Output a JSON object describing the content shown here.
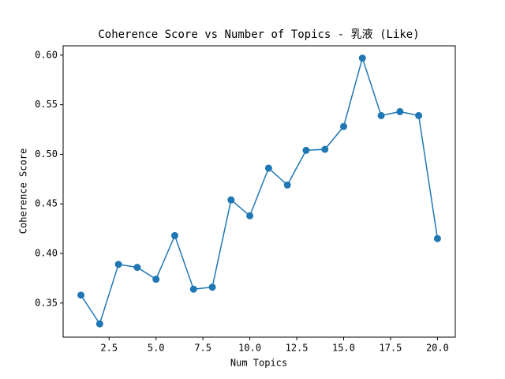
{
  "chart_data": {
    "type": "line",
    "title": "Coherence Score vs Number of Topics - 乳液 (Like)",
    "x_label": "Num Topics",
    "y_label": "Coherence Score",
    "x": [
      1,
      2,
      3,
      4,
      5,
      6,
      7,
      8,
      9,
      10,
      11,
      12,
      13,
      14,
      15,
      16,
      17,
      18,
      19,
      20
    ],
    "series": [
      {
        "name": "Coherence Score",
        "color": "#1f77b4",
        "values": [
          0.358,
          0.329,
          0.389,
          0.386,
          0.374,
          0.418,
          0.364,
          0.366,
          0.454,
          0.438,
          0.486,
          0.469,
          0.504,
          0.505,
          0.528,
          0.597,
          0.539,
          0.543,
          0.539,
          0.415
        ]
      }
    ],
    "xlim": [
      0.05,
      20.95
    ],
    "xticks": [
      2.5,
      {
        "value": 5,
        "label": "5.0"
      },
      7.5,
      {
        "value": 10,
        "label": "10.0"
      },
      12.5,
      {
        "value": 15,
        "label": "15.0"
      },
      17.5,
      {
        "value": 20,
        "label": "20.0"
      }
    ],
    "ylim": [
      0.3156,
      0.6094
    ],
    "yticks": [
      0.35,
      {
        "value": 0.4,
        "label": "0.40"
      },
      0.45,
      {
        "value": 0.5,
        "label": "0.50"
      },
      0.55,
      {
        "value": 0.6,
        "label": "0.60"
      }
    ],
    "grid": false,
    "markers": true
  }
}
